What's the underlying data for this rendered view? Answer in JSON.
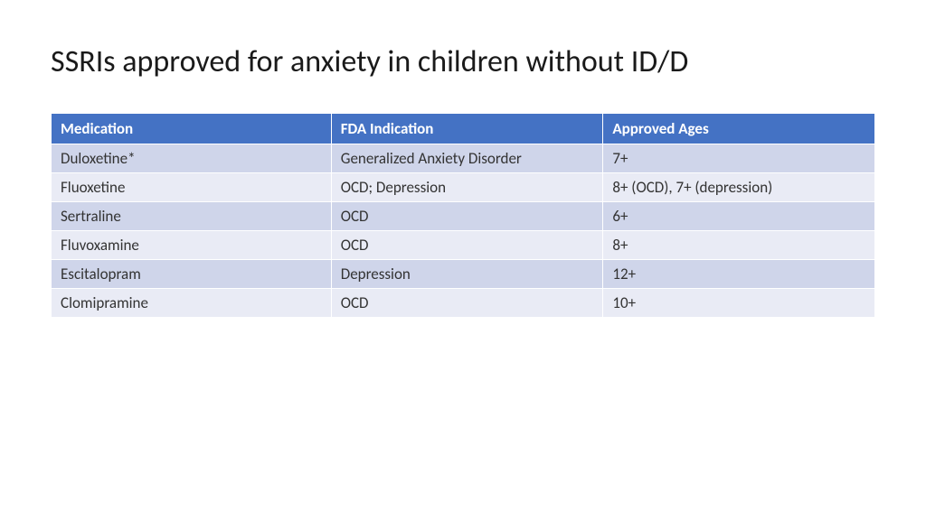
{
  "title": "SSRIs approved for anxiety in children without ID/D",
  "table": {
    "type": "table",
    "header_bg": "#4472c4",
    "header_text_color": "#ffffff",
    "row_bg_odd": "#cfd5ea",
    "row_bg_even": "#e9ebf5",
    "text_color": "#333333",
    "title_fontsize": 34,
    "cell_fontsize": 17,
    "columns": [
      "Medication",
      "FDA Indication",
      "Approved Ages"
    ],
    "col_widths_pct": [
      34,
      33,
      33
    ],
    "rows": [
      [
        "Duloxetine*",
        "Generalized Anxiety Disorder",
        "7+"
      ],
      [
        "Fluoxetine",
        "OCD; Depression",
        "8+ (OCD), 7+ (depression)"
      ],
      [
        "Sertraline",
        "OCD",
        "6+"
      ],
      [
        "Fluvoxamine",
        "OCD",
        "8+"
      ],
      [
        "Escitalopram",
        "Depression",
        "12+"
      ],
      [
        "Clomipramine",
        "OCD",
        "10+"
      ]
    ]
  }
}
